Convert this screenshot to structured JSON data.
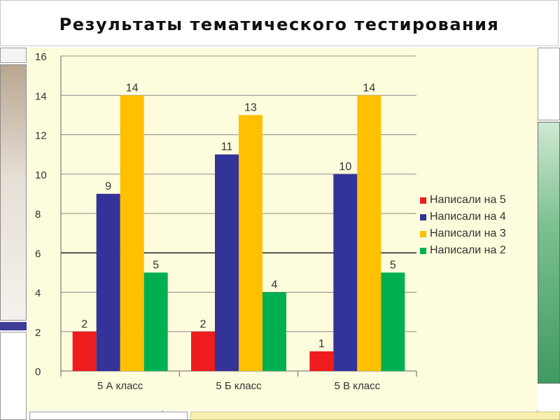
{
  "page": {
    "title": "Результаты тематического тестирования"
  },
  "chart_data": {
    "type": "bar",
    "title": "",
    "xlabel": "",
    "ylabel": "",
    "ylim": [
      0,
      16
    ],
    "yticks": [
      0,
      2,
      4,
      6,
      8,
      10,
      12,
      14,
      16
    ],
    "grid": true,
    "legend_position": "right",
    "categories": [
      "5 А класс",
      "5 Б  класс",
      "5 В класс"
    ],
    "series": [
      {
        "name": "Написали на 5",
        "color": "#ee1c1c",
        "values": [
          2,
          2,
          1
        ]
      },
      {
        "name": "Написали на 4",
        "color": "#333399",
        "values": [
          9,
          11,
          10
        ]
      },
      {
        "name": "Написали на 3",
        "color": "#ffc000",
        "values": [
          14,
          13,
          14
        ]
      },
      {
        "name": "Написали на 2",
        "color": "#00b050",
        "values": [
          5,
          4,
          5
        ]
      }
    ],
    "plot_background": "#fdfcdc"
  }
}
